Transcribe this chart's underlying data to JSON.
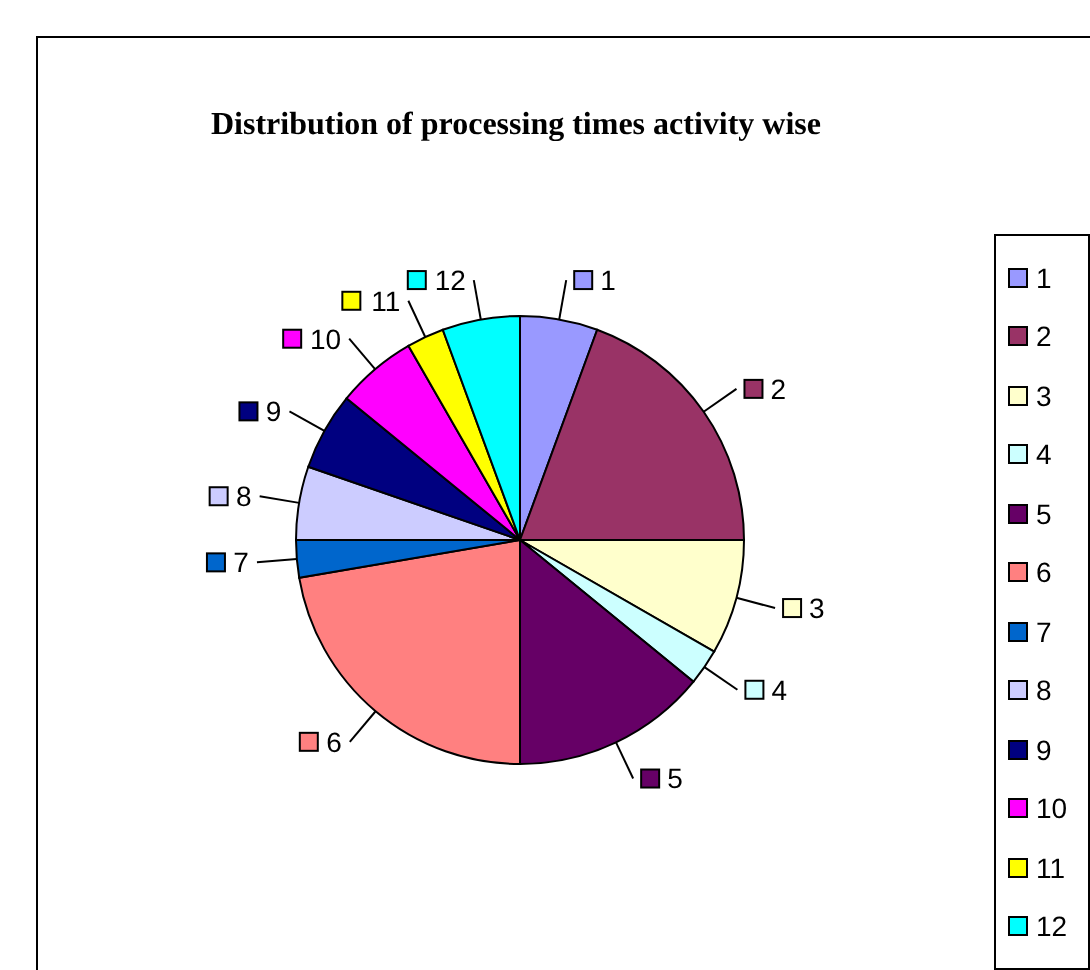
{
  "chart_data": {
    "type": "pie",
    "title": "Distribution of processing times activity wise",
    "categories": [
      "1",
      "2",
      "3",
      "4",
      "5",
      "6",
      "7",
      "8",
      "9",
      "10",
      "11",
      "12"
    ],
    "values": [
      5.6,
      19.4,
      8.3,
      2.6,
      14.1,
      22.3,
      2.7,
      5.3,
      5.6,
      5.8,
      2.7,
      5.6
    ],
    "colors": [
      "#9999ff",
      "#993366",
      "#ffffcc",
      "#ccffff",
      "#660066",
      "#ff8080",
      "#0066cc",
      "#ccccff",
      "#000080",
      "#ff00ff",
      "#ffff00",
      "#00ffff"
    ],
    "legend": "right"
  }
}
